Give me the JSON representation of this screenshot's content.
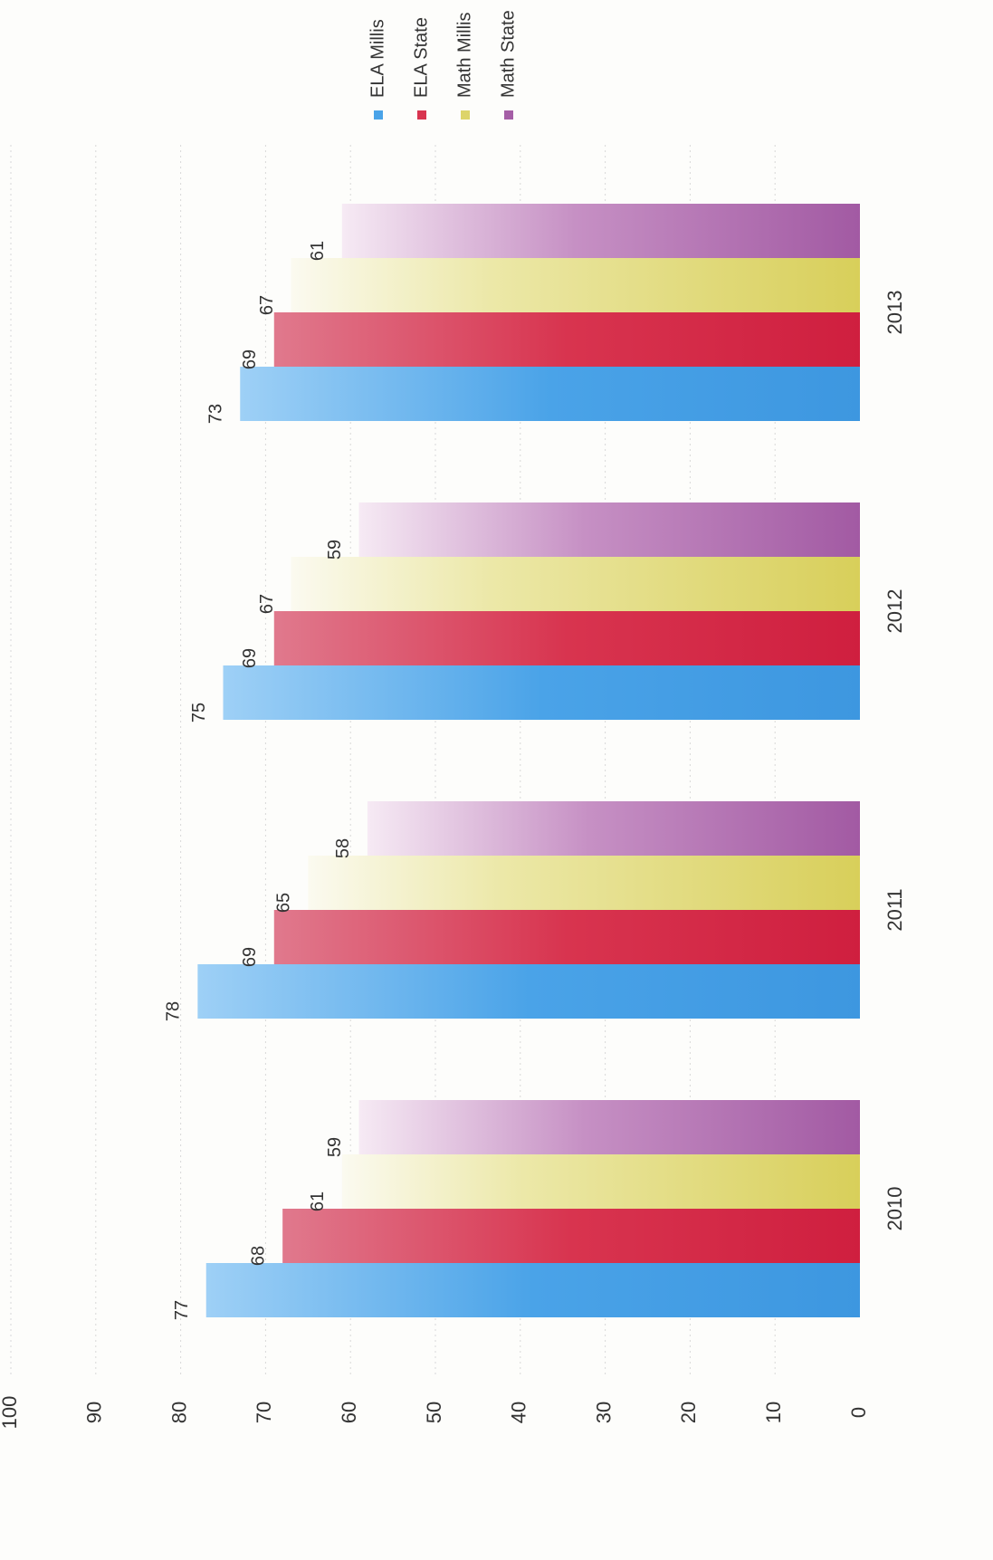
{
  "chart_data": {
    "type": "bar",
    "orientation": "rotated 90° clockwise (vertical column chart printed sideways)",
    "categories": [
      "2010",
      "2011",
      "2012",
      "2013"
    ],
    "series": [
      {
        "name": "ELA Millis",
        "values": [
          77,
          78,
          75,
          73
        ],
        "color": "#4aa3e8"
      },
      {
        "name": "ELA State",
        "values": [
          68,
          69,
          69,
          69
        ],
        "color": "#d8344f"
      },
      {
        "name": "Math Millis",
        "values": [
          61,
          65,
          67,
          67
        ],
        "color": "#ddd46a"
      },
      {
        "name": "Math State",
        "values": [
          59,
          58,
          59,
          61
        ],
        "color": "#a55ea6"
      }
    ],
    "y_ticks": [
      "0",
      "10",
      "20",
      "30",
      "40",
      "50",
      "60",
      "70",
      "80",
      "90",
      "100"
    ],
    "ylim": [
      0,
      100
    ],
    "grid": true,
    "legend_position": "right",
    "title": "",
    "xlabel": "",
    "ylabel": ""
  }
}
